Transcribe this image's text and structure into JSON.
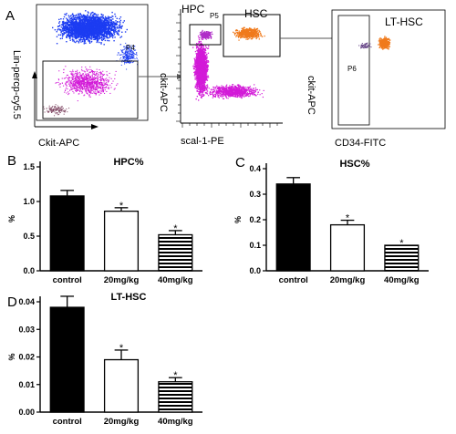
{
  "colors": {
    "blue": "#1c3cf2",
    "magenta": "#d31ad8",
    "violet": "#b02ec8",
    "orange": "#f07a1c",
    "black": "#000000"
  },
  "flow": {
    "panel_letter": "A",
    "plot1": {
      "ylabel": "Lin-percp-cy5.5",
      "xlabel": "Ckit-APC",
      "gate": "P4"
    },
    "plot2": {
      "ylabel": "ckit-APC",
      "xlabel": "scal-1-PE",
      "gate": "P5",
      "gate_hpc": "HPC",
      "gate_hsc": "HSC"
    },
    "plot3": {
      "ylabel": "ckit-APC",
      "xlabel": "CD34-FITC",
      "gate": "P6",
      "pop": "LT-HSC"
    }
  },
  "chart_data": [
    {
      "type": "bar",
      "panel_letter": "B",
      "title": "HPC%",
      "ylabel": "%",
      "categories": [
        "control",
        "20mg/kg",
        "40mg/kg"
      ],
      "values": [
        1.08,
        0.86,
        0.52
      ],
      "errors": [
        0.08,
        0.05,
        0.06
      ],
      "significance": [
        "",
        "*",
        "*"
      ],
      "fills": [
        "solid",
        "white",
        "striped"
      ],
      "ylim": [
        0,
        1.5
      ],
      "yticks": [
        "0.0",
        "0.5",
        "1.0",
        "1.5"
      ]
    },
    {
      "type": "bar",
      "panel_letter": "C",
      "title": "HSC%",
      "ylabel": "%",
      "categories": [
        "control",
        "20mg/kg",
        "40mg/kg"
      ],
      "values": [
        0.34,
        0.18,
        0.1
      ],
      "errors": [
        0.025,
        0.018,
        0.0
      ],
      "significance": [
        "",
        "*",
        "*"
      ],
      "fills": [
        "solid",
        "white",
        "striped"
      ],
      "ylim": [
        0,
        0.4
      ],
      "yticks": [
        "0.0",
        "0.1",
        "0.2",
        "0.3",
        "0.4"
      ]
    },
    {
      "type": "bar",
      "panel_letter": "D",
      "title": "LT-HSC",
      "ylabel": "%",
      "categories": [
        "control",
        "20mg/kg",
        "40mg/kg"
      ],
      "values": [
        0.038,
        0.019,
        0.011
      ],
      "errors": [
        0.004,
        0.0035,
        0.0015
      ],
      "significance": [
        "",
        "*",
        "*"
      ],
      "fills": [
        "solid",
        "white",
        "striped"
      ],
      "ylim": [
        0,
        0.04
      ],
      "yticks": [
        "0.00",
        "0.01",
        "0.02",
        "0.03",
        "0.04"
      ]
    }
  ]
}
